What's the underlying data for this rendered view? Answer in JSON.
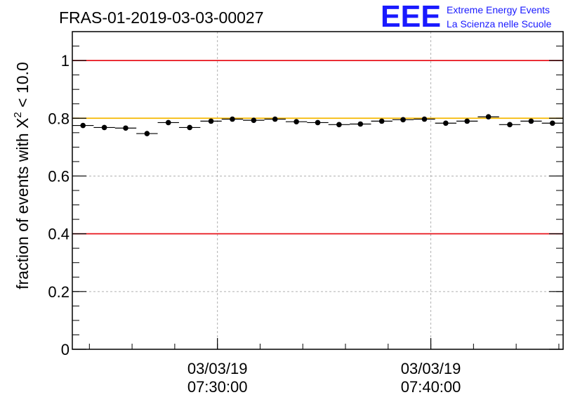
{
  "chart_data": {
    "type": "scatter",
    "title": "FRAS-01-2019-03-03-00027",
    "ylabel_prefix": "fraction of events with ",
    "ylabel_symbol": "X",
    "ylabel_superscript": "2",
    "ylabel_suffix": " < 10.0",
    "logo": {
      "letters": "EEE",
      "line1": "Extreme Energy Events",
      "line2": "La Scienza nelle Scuole",
      "color": "#1a1aff"
    },
    "ylim": [
      0,
      1.1
    ],
    "y_ticks": [
      {
        "value": 0,
        "label": "0"
      },
      {
        "value": 0.2,
        "label": "0.2"
      },
      {
        "value": 0.4,
        "label": "0.4"
      },
      {
        "value": 0.6,
        "label": "0.6"
      },
      {
        "value": 0.8,
        "label": "0.8"
      },
      {
        "value": 1.0,
        "label": "1"
      }
    ],
    "xlim_minutes": [
      23.2,
      46.2
    ],
    "x_ticks": [
      {
        "minute": 30,
        "date": "03/03/19",
        "time": "07:30:00"
      },
      {
        "minute": 40,
        "date": "03/03/19",
        "time": "07:40:00"
      }
    ],
    "x_minor_every_minutes": 2,
    "grid": true,
    "reference_lines": [
      {
        "value": 1.0,
        "color": "#e8141c"
      },
      {
        "value": 0.4,
        "color": "#e8141c"
      },
      {
        "value": 0.8,
        "color": "#f5b800"
      }
    ],
    "bin_width_minutes": 1,
    "points": [
      {
        "x": 23.7,
        "y": 0.775
      },
      {
        "x": 24.7,
        "y": 0.768
      },
      {
        "x": 25.7,
        "y": 0.766
      },
      {
        "x": 26.7,
        "y": 0.747
      },
      {
        "x": 27.7,
        "y": 0.785
      },
      {
        "x": 28.7,
        "y": 0.768
      },
      {
        "x": 29.7,
        "y": 0.79
      },
      {
        "x": 30.7,
        "y": 0.797
      },
      {
        "x": 31.7,
        "y": 0.793
      },
      {
        "x": 32.7,
        "y": 0.797
      },
      {
        "x": 33.7,
        "y": 0.788
      },
      {
        "x": 34.7,
        "y": 0.785
      },
      {
        "x": 35.7,
        "y": 0.778
      },
      {
        "x": 36.7,
        "y": 0.78
      },
      {
        "x": 37.7,
        "y": 0.79
      },
      {
        "x": 38.7,
        "y": 0.795
      },
      {
        "x": 39.7,
        "y": 0.797
      },
      {
        "x": 40.7,
        "y": 0.783
      },
      {
        "x": 41.7,
        "y": 0.79
      },
      {
        "x": 42.7,
        "y": 0.805
      },
      {
        "x": 43.7,
        "y": 0.778
      },
      {
        "x": 44.7,
        "y": 0.79
      },
      {
        "x": 45.7,
        "y": 0.783
      }
    ]
  }
}
